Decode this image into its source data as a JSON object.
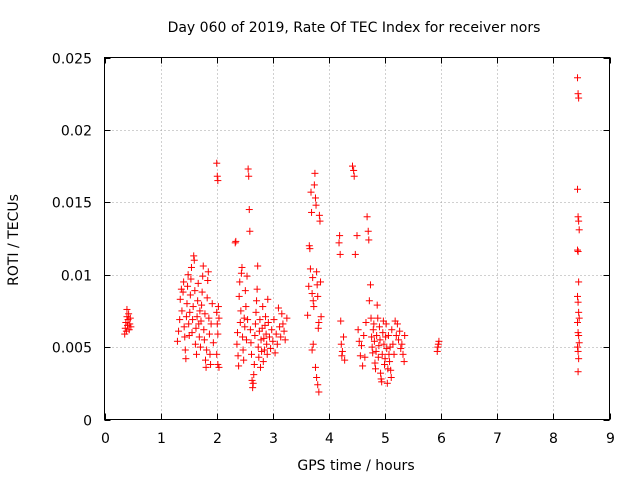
{
  "chart_data": {
    "type": "scatter",
    "title": "Day 060 of 2019, Rate Of TEC Index for receiver nors",
    "xlabel": "GPS time / hours",
    "ylabel": "ROTI / TECUs",
    "xlim": [
      0,
      9
    ],
    "ylim": [
      0,
      0.025
    ],
    "xticks": [
      0,
      1,
      2,
      3,
      4,
      5,
      6,
      7,
      8,
      9
    ],
    "xtick_labels": [
      "0",
      "1",
      "2",
      "3",
      "4",
      "5",
      "6",
      "7",
      "8",
      "9"
    ],
    "yticks": [
      0,
      0.005,
      0.01,
      0.015,
      0.02,
      0.025
    ],
    "ytick_labels": [
      "0",
      "0.005",
      "0.01",
      "0.015",
      "0.02",
      "0.025"
    ],
    "grid": true,
    "marker": "+",
    "marker_color": "#ff0000",
    "series": [
      {
        "name": "ROTI",
        "points": [
          [
            0.36,
            0.0059
          ],
          [
            0.37,
            0.0063
          ],
          [
            0.38,
            0.0067
          ],
          [
            0.39,
            0.0061
          ],
          [
            0.4,
            0.0071
          ],
          [
            0.4,
            0.0076
          ],
          [
            0.41,
            0.0065
          ],
          [
            0.42,
            0.0069
          ],
          [
            0.43,
            0.0073
          ],
          [
            0.44,
            0.0062
          ],
          [
            0.45,
            0.0066
          ],
          [
            0.46,
            0.007
          ],
          [
            0.47,
            0.0064
          ],
          [
            1.3,
            0.0054
          ],
          [
            1.32,
            0.0061
          ],
          [
            1.34,
            0.0069
          ],
          [
            1.35,
            0.0083
          ],
          [
            1.37,
            0.009
          ],
          [
            1.38,
            0.0075
          ],
          [
            1.4,
            0.0088
          ],
          [
            1.41,
            0.0095
          ],
          [
            1.42,
            0.0064
          ],
          [
            1.43,
            0.0057
          ],
          [
            1.44,
            0.0048
          ],
          [
            1.45,
            0.0042
          ],
          [
            1.46,
            0.0071
          ],
          [
            1.47,
            0.008
          ],
          [
            1.48,
            0.0092
          ],
          [
            1.49,
            0.01
          ],
          [
            1.5,
            0.0066
          ],
          [
            1.51,
            0.0058
          ],
          [
            1.52,
            0.0074
          ],
          [
            1.53,
            0.0086
          ],
          [
            1.54,
            0.0097
          ],
          [
            1.55,
            0.0105
          ],
          [
            1.56,
            0.006
          ],
          [
            1.57,
            0.0069
          ],
          [
            1.58,
            0.0078
          ],
          [
            1.59,
            0.0113
          ],
          [
            1.6,
            0.011
          ],
          [
            1.61,
            0.0089
          ],
          [
            1.62,
            0.0052
          ],
          [
            1.63,
            0.0063
          ],
          [
            1.64,
            0.0045
          ],
          [
            1.65,
            0.0071
          ],
          [
            1.66,
            0.0082
          ],
          [
            1.67,
            0.0094
          ],
          [
            1.68,
            0.0066
          ],
          [
            1.69,
            0.0057
          ],
          [
            1.7,
            0.0075
          ],
          [
            1.71,
            0.005
          ],
          [
            1.72,
            0.0068
          ],
          [
            1.73,
            0.0079
          ],
          [
            1.74,
            0.0088
          ],
          [
            1.75,
            0.0099
          ],
          [
            1.76,
            0.0106
          ],
          [
            1.77,
            0.0062
          ],
          [
            1.78,
            0.0055
          ],
          [
            1.79,
            0.0073
          ],
          [
            1.8,
            0.0041
          ],
          [
            1.81,
            0.0036
          ],
          [
            1.82,
            0.0048
          ],
          [
            1.83,
            0.0084
          ],
          [
            1.84,
            0.0096
          ],
          [
            1.85,
            0.0102
          ],
          [
            1.86,
            0.007
          ],
          [
            1.87,
            0.0059
          ],
          [
            1.88,
            0.0045
          ],
          [
            1.89,
            0.0038
          ],
          [
            1.9,
            0.0066
          ],
          [
            1.92,
            0.008
          ],
          [
            1.94,
            0.0053
          ],
          [
            2.0,
            0.0177
          ],
          [
            2.01,
            0.0168
          ],
          [
            2.02,
            0.0165
          ],
          [
            2.0,
            0.0074
          ],
          [
            2.01,
            0.0066
          ],
          [
            2.02,
            0.0059
          ],
          [
            2.03,
            0.0078
          ],
          [
            2.04,
            0.007
          ],
          [
            2.0,
            0.0045
          ],
          [
            2.02,
            0.0038
          ],
          [
            2.04,
            0.0036
          ],
          [
            2.33,
            0.0122
          ],
          [
            2.34,
            0.0123
          ],
          [
            2.36,
            0.0052
          ],
          [
            2.37,
            0.006
          ],
          [
            2.38,
            0.0044
          ],
          [
            2.39,
            0.0037
          ],
          [
            2.4,
            0.0085
          ],
          [
            2.41,
            0.0095
          ],
          [
            2.42,
            0.0067
          ],
          [
            2.43,
            0.0075
          ],
          [
            2.44,
            0.0101
          ],
          [
            2.45,
            0.0105
          ],
          [
            2.46,
            0.0057
          ],
          [
            2.47,
            0.0048
          ],
          [
            2.48,
            0.0041
          ],
          [
            2.49,
            0.007
          ],
          [
            2.5,
            0.0064
          ],
          [
            2.51,
            0.0089
          ],
          [
            2.52,
            0.0078
          ],
          [
            2.53,
            0.0055
          ],
          [
            2.54,
            0.0099
          ],
          [
            2.55,
            0.0069
          ],
          [
            2.56,
            0.0173
          ],
          [
            2.57,
            0.0168
          ],
          [
            2.58,
            0.0145
          ],
          [
            2.59,
            0.013
          ],
          [
            2.6,
            0.0062
          ],
          [
            2.61,
            0.0053
          ],
          [
            2.62,
            0.0045
          ],
          [
            2.63,
            0.0027
          ],
          [
            2.64,
            0.0022
          ],
          [
            2.65,
            0.0025
          ],
          [
            2.66,
            0.0031
          ],
          [
            2.67,
            0.0038
          ],
          [
            2.68,
            0.0058
          ],
          [
            2.69,
            0.0066
          ],
          [
            2.7,
            0.0074
          ],
          [
            2.71,
            0.0082
          ],
          [
            2.72,
            0.009
          ],
          [
            2.73,
            0.0106
          ],
          [
            2.74,
            0.005
          ],
          [
            2.75,
            0.0043
          ],
          [
            2.76,
            0.0061
          ],
          [
            2.77,
            0.0069
          ],
          [
            2.78,
            0.0036
          ],
          [
            2.79,
            0.0055
          ],
          [
            2.8,
            0.0047
          ],
          [
            2.81,
            0.0063
          ],
          [
            2.82,
            0.0078
          ],
          [
            2.83,
            0.004
          ],
          [
            2.84,
            0.0056
          ],
          [
            2.85,
            0.0048
          ],
          [
            2.86,
            0.0065
          ],
          [
            2.87,
            0.0071
          ],
          [
            2.88,
            0.0059
          ],
          [
            2.89,
            0.0052
          ],
          [
            2.9,
            0.0045
          ],
          [
            2.91,
            0.0083
          ],
          [
            2.92,
            0.0067
          ],
          [
            2.94,
            0.0057
          ],
          [
            2.96,
            0.0049
          ],
          [
            2.98,
            0.0062
          ],
          [
            3.0,
            0.0054
          ],
          [
            3.02,
            0.0069
          ],
          [
            3.04,
            0.0046
          ],
          [
            3.06,
            0.0059
          ],
          [
            3.08,
            0.0052
          ],
          [
            3.1,
            0.0077
          ],
          [
            3.12,
            0.0064
          ],
          [
            3.14,
            0.0057
          ],
          [
            3.16,
            0.0073
          ],
          [
            3.18,
            0.0066
          ],
          [
            3.2,
            0.0061
          ],
          [
            3.22,
            0.0055
          ],
          [
            3.25,
            0.007
          ],
          [
            3.62,
            0.0072
          ],
          [
            3.64,
            0.0092
          ],
          [
            3.65,
            0.012
          ],
          [
            3.66,
            0.0118
          ],
          [
            3.67,
            0.0104
          ],
          [
            3.68,
            0.0157
          ],
          [
            3.69,
            0.0143
          ],
          [
            3.7,
            0.0087
          ],
          [
            3.71,
            0.0098
          ],
          [
            3.72,
            0.0082
          ],
          [
            3.73,
            0.0078
          ],
          [
            3.74,
            0.0162
          ],
          [
            3.75,
            0.017
          ],
          [
            3.76,
            0.0153
          ],
          [
            3.77,
            0.0148
          ],
          [
            3.78,
            0.0102
          ],
          [
            3.79,
            0.0093
          ],
          [
            3.8,
            0.0085
          ],
          [
            3.81,
            0.0063
          ],
          [
            3.82,
            0.0067
          ],
          [
            3.83,
            0.0141
          ],
          [
            3.84,
            0.0137
          ],
          [
            3.85,
            0.0095
          ],
          [
            3.86,
            0.0071
          ],
          [
            3.7,
            0.0048
          ],
          [
            3.72,
            0.0052
          ],
          [
            3.76,
            0.0036
          ],
          [
            3.78,
            0.0029
          ],
          [
            3.8,
            0.0024
          ],
          [
            3.82,
            0.0019
          ],
          [
            4.18,
            0.0122
          ],
          [
            4.19,
            0.0127
          ],
          [
            4.2,
            0.0114
          ],
          [
            4.21,
            0.0068
          ],
          [
            4.22,
            0.0052
          ],
          [
            4.23,
            0.0044
          ],
          [
            4.24,
            0.0047
          ],
          [
            4.26,
            0.0057
          ],
          [
            4.28,
            0.0041
          ],
          [
            4.42,
            0.0175
          ],
          [
            4.44,
            0.0172
          ],
          [
            4.45,
            0.0168
          ],
          [
            4.47,
            0.0114
          ],
          [
            4.5,
            0.0127
          ],
          [
            4.52,
            0.0062
          ],
          [
            4.54,
            0.0054
          ],
          [
            4.56,
            0.0044
          ],
          [
            4.58,
            0.0051
          ],
          [
            4.6,
            0.0037
          ],
          [
            4.62,
            0.0058
          ],
          [
            4.64,
            0.0043
          ],
          [
            4.66,
            0.0067
          ],
          [
            4.68,
            0.014
          ],
          [
            4.7,
            0.013
          ],
          [
            4.71,
            0.0124
          ],
          [
            4.72,
            0.0082
          ],
          [
            4.74,
            0.0093
          ],
          [
            4.75,
            0.007
          ],
          [
            4.76,
            0.0057
          ],
          [
            4.77,
            0.005
          ],
          [
            4.78,
            0.0046
          ],
          [
            4.79,
            0.0062
          ],
          [
            4.8,
            0.0066
          ],
          [
            4.81,
            0.0054
          ],
          [
            4.82,
            0.0039
          ],
          [
            4.83,
            0.0035
          ],
          [
            4.84,
            0.0047
          ],
          [
            4.85,
            0.0058
          ],
          [
            4.86,
            0.0079
          ],
          [
            4.87,
            0.007
          ],
          [
            4.88,
            0.0043
          ],
          [
            4.89,
            0.0051
          ],
          [
            4.9,
            0.0064
          ],
          [
            4.91,
            0.0055
          ],
          [
            4.92,
            0.0032
          ],
          [
            4.93,
            0.0028
          ],
          [
            4.94,
            0.0026
          ],
          [
            4.95,
            0.0045
          ],
          [
            4.96,
            0.006
          ],
          [
            4.97,
            0.0068
          ],
          [
            4.98,
            0.0052
          ],
          [
            4.99,
            0.0038
          ],
          [
            5.0,
            0.0042
          ],
          [
            5.01,
            0.0057
          ],
          [
            5.02,
            0.0066
          ],
          [
            5.03,
            0.0049
          ],
          [
            5.04,
            0.0025
          ],
          [
            5.05,
            0.0035
          ],
          [
            5.06,
            0.0058
          ],
          [
            5.07,
            0.0045
          ],
          [
            5.08,
            0.004
          ],
          [
            5.09,
            0.005
          ],
          [
            5.1,
            0.0034
          ],
          [
            5.11,
            0.0029
          ],
          [
            5.12,
            0.0062
          ],
          [
            5.14,
            0.0052
          ],
          [
            5.16,
            0.0045
          ],
          [
            5.18,
            0.0068
          ],
          [
            5.2,
            0.0058
          ],
          [
            5.22,
            0.0066
          ],
          [
            5.24,
            0.0055
          ],
          [
            5.26,
            0.0061
          ],
          [
            5.28,
            0.0049
          ],
          [
            5.3,
            0.0052
          ],
          [
            5.32,
            0.0045
          ],
          [
            5.34,
            0.004
          ],
          [
            5.35,
            0.0058
          ],
          [
            5.93,
            0.0047
          ],
          [
            5.94,
            0.005
          ],
          [
            5.95,
            0.0052
          ],
          [
            5.96,
            0.0054
          ],
          [
            8.43,
            0.0236
          ],
          [
            8.44,
            0.0225
          ],
          [
            8.45,
            0.0222
          ],
          [
            8.43,
            0.0159
          ],
          [
            8.44,
            0.014
          ],
          [
            8.45,
            0.0137
          ],
          [
            8.46,
            0.0131
          ],
          [
            8.43,
            0.0117
          ],
          [
            8.44,
            0.0116
          ],
          [
            8.45,
            0.0095
          ],
          [
            8.43,
            0.0085
          ],
          [
            8.44,
            0.0081
          ],
          [
            8.45,
            0.0074
          ],
          [
            8.46,
            0.007
          ],
          [
            8.43,
            0.0067
          ],
          [
            8.44,
            0.006
          ],
          [
            8.45,
            0.0058
          ],
          [
            8.46,
            0.0053
          ],
          [
            8.43,
            0.005
          ],
          [
            8.44,
            0.0047
          ],
          [
            8.45,
            0.0042
          ],
          [
            8.44,
            0.0033
          ]
        ]
      }
    ]
  }
}
